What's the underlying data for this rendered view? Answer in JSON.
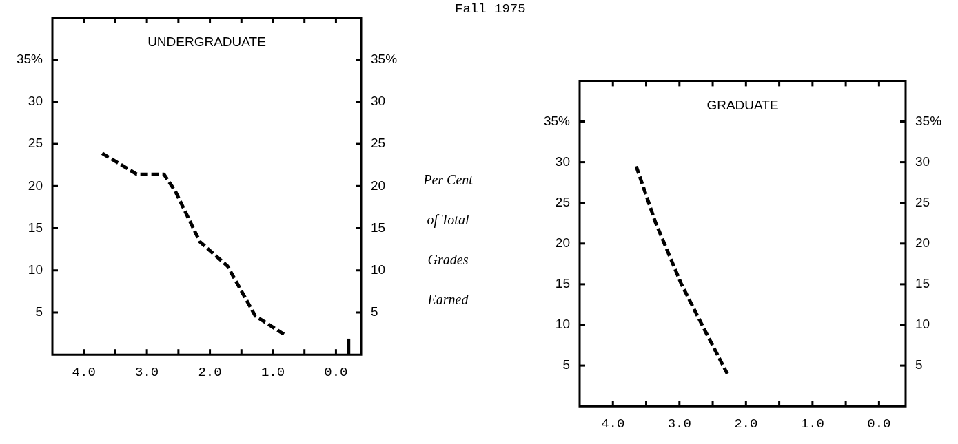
{
  "chart_data": [
    {
      "type": "line",
      "title": "UNDERGRADUATE",
      "annotations": [
        "Fall 1975"
      ],
      "xlim": [
        4.5,
        -0.4
      ],
      "xticks": [
        {
          "value": 4,
          "label": "4.0"
        },
        {
          "value": 3.5,
          "label": null
        },
        {
          "value": 3,
          "label": "3.0"
        },
        {
          "value": 2.5,
          "label": null
        },
        {
          "value": 2,
          "label": "2.0"
        },
        {
          "value": 1.5,
          "label": null
        },
        {
          "value": 1,
          "label": "1.0"
        },
        {
          "value": 0.5,
          "label": null
        },
        {
          "value": 0,
          "label": "0.0"
        }
      ],
      "ylim": [
        0,
        40
      ],
      "yticks": [
        5,
        10,
        15,
        20,
        25,
        30,
        {
          "value": 35,
          "label": "35%"
        }
      ],
      "y2lim": [
        0,
        40
      ],
      "y2ticks": [
        5,
        10,
        15,
        20,
        25,
        30,
        {
          "value": 35,
          "label": "35%"
        }
      ],
      "series": [
        {
          "color": "#000000",
          "line_style": "dashed",
          "x": [
            3.71,
            3.16,
            2.73,
            2.55,
            2.16,
            1.72,
            1.28,
            0.8
          ],
          "values": [
            23.9,
            21.4,
            21.4,
            19.4,
            13.4,
            10.5,
            4.6,
            2.3
          ]
        },
        {
          "color": "#000000",
          "line_style": "solid",
          "x": [
            -0.2,
            -0.2
          ],
          "values": [
            0,
            1.9
          ]
        }
      ]
    },
    {
      "type": "line",
      "title": "GRADUATE",
      "ylabel": "Per Cent of Total Grades Earned",
      "xlim": [
        4.5,
        -0.4
      ],
      "xticks": [
        {
          "value": 4,
          "label": "4.0"
        },
        {
          "value": 3.5,
          "label": null
        },
        {
          "value": 3,
          "label": "3.0"
        },
        {
          "value": 2.5,
          "label": null
        },
        {
          "value": 2,
          "label": "2.0"
        },
        {
          "value": 1.5,
          "label": null
        },
        {
          "value": 1,
          "label": "1.0"
        },
        {
          "value": 0.5,
          "label": null
        },
        {
          "value": 0,
          "label": "0.0"
        }
      ],
      "ylim": [
        0,
        40
      ],
      "yticks": [
        5,
        10,
        15,
        20,
        25,
        30,
        {
          "value": 35,
          "label": "35%"
        }
      ],
      "y2lim": [
        0,
        40
      ],
      "y2ticks": [
        5,
        10,
        15,
        20,
        25,
        30,
        {
          "value": 35,
          "label": "35%"
        }
      ],
      "series": [
        {
          "color": "#000000",
          "line_style": "dashed",
          "x": [
            3.65,
            3.36,
            2.97,
            2.61,
            2.28
          ],
          "values": [
            29.5,
            22.6,
            15.0,
            9.2,
            4.0
          ]
        }
      ]
    }
  ]
}
